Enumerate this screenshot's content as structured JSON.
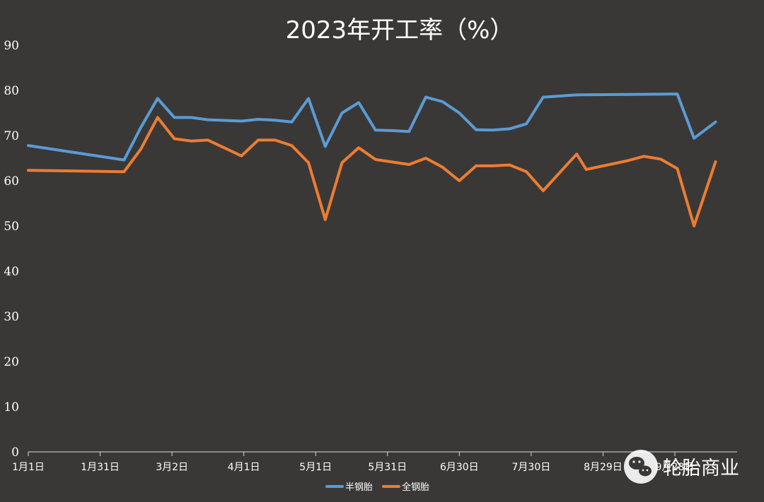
{
  "chart_data": {
    "type": "line",
    "title": "2023年开工率（%）",
    "xlabel": "",
    "ylabel": "",
    "ylim": [
      0,
      90
    ],
    "yticks": [
      0,
      10,
      20,
      30,
      40,
      50,
      60,
      70,
      80,
      90
    ],
    "x_axis_type": "date",
    "xlim": [
      "2023-01-01",
      "2023-10-24"
    ],
    "xticks": [
      {
        "date": "2023-01-01",
        "label": "1月1日"
      },
      {
        "date": "2023-01-31",
        "label": "1月31日"
      },
      {
        "date": "2023-03-02",
        "label": "3月2日"
      },
      {
        "date": "2023-04-01",
        "label": "4月1日"
      },
      {
        "date": "2023-05-01",
        "label": "5月1日"
      },
      {
        "date": "2023-05-31",
        "label": "5月31日"
      },
      {
        "date": "2023-06-30",
        "label": "6月30日"
      },
      {
        "date": "2023-07-30",
        "label": "7月30日"
      },
      {
        "date": "2023-08-29",
        "label": "8月29日"
      },
      {
        "date": "2023-09-28",
        "label": "9月28日"
      }
    ],
    "legend": "bottom",
    "grid": false,
    "series": [
      {
        "name": "半钢胎",
        "color": "#5b9bd5",
        "points": [
          [
            "2023-01-01",
            67.8
          ],
          [
            "2023-02-10",
            64.6
          ],
          [
            "2023-02-17",
            71.8
          ],
          [
            "2023-02-24",
            78.2
          ],
          [
            "2023-03-03",
            74.0
          ],
          [
            "2023-03-10",
            74.0
          ],
          [
            "2023-03-17",
            73.5
          ],
          [
            "2023-03-31",
            73.2
          ],
          [
            "2023-04-07",
            73.6
          ],
          [
            "2023-04-14",
            73.4
          ],
          [
            "2023-04-21",
            73.0
          ],
          [
            "2023-04-28",
            78.2
          ],
          [
            "2023-05-05",
            67.6
          ],
          [
            "2023-05-12",
            75.0
          ],
          [
            "2023-05-19",
            77.3
          ],
          [
            "2023-05-26",
            71.2
          ],
          [
            "2023-06-02",
            71.1
          ],
          [
            "2023-06-09",
            70.9
          ],
          [
            "2023-06-16",
            78.5
          ],
          [
            "2023-06-23",
            77.5
          ],
          [
            "2023-06-30",
            75.0
          ],
          [
            "2023-07-07",
            71.3
          ],
          [
            "2023-07-14",
            71.2
          ],
          [
            "2023-07-21",
            71.5
          ],
          [
            "2023-07-28",
            72.6
          ],
          [
            "2023-08-04",
            78.5
          ],
          [
            "2023-08-18",
            79.0
          ],
          [
            "2023-09-08",
            79.1
          ],
          [
            "2023-09-29",
            79.2
          ],
          [
            "2023-10-06",
            69.4
          ],
          [
            "2023-10-15",
            73.0
          ]
        ]
      },
      {
        "name": "全钢胎",
        "color": "#ed7d31",
        "points": [
          [
            "2023-01-01",
            62.3
          ],
          [
            "2023-02-10",
            62.0
          ],
          [
            "2023-02-17",
            67.0
          ],
          [
            "2023-02-24",
            74.0
          ],
          [
            "2023-03-03",
            69.3
          ],
          [
            "2023-03-10",
            68.8
          ],
          [
            "2023-03-17",
            69.0
          ],
          [
            "2023-03-31",
            65.5
          ],
          [
            "2023-04-07",
            69.0
          ],
          [
            "2023-04-14",
            69.0
          ],
          [
            "2023-04-21",
            67.8
          ],
          [
            "2023-04-28",
            64.0
          ],
          [
            "2023-05-05",
            51.4
          ],
          [
            "2023-05-12",
            64.0
          ],
          [
            "2023-05-19",
            67.3
          ],
          [
            "2023-05-26",
            64.7
          ],
          [
            "2023-06-09",
            63.6
          ],
          [
            "2023-06-16",
            65.0
          ],
          [
            "2023-06-23",
            63.0
          ],
          [
            "2023-06-30",
            60.0
          ],
          [
            "2023-07-07",
            63.3
          ],
          [
            "2023-07-14",
            63.3
          ],
          [
            "2023-07-21",
            63.5
          ],
          [
            "2023-07-28",
            62.0
          ],
          [
            "2023-08-04",
            57.8
          ],
          [
            "2023-08-18",
            65.9
          ],
          [
            "2023-08-22",
            62.5
          ],
          [
            "2023-09-08",
            64.4
          ],
          [
            "2023-09-15",
            65.4
          ],
          [
            "2023-09-22",
            64.8
          ],
          [
            "2023-09-29",
            62.7
          ],
          [
            "2023-10-06",
            50.0
          ],
          [
            "2023-10-15",
            64.2
          ]
        ]
      }
    ]
  },
  "watermark": {
    "text": "轮胎商业",
    "icon": "wechat-icon"
  }
}
